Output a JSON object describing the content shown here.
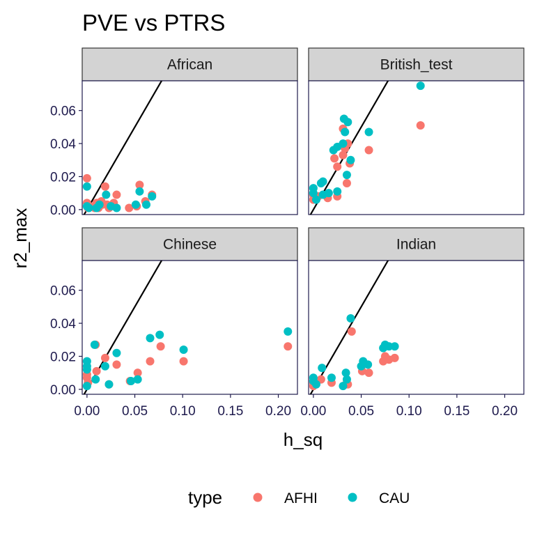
{
  "chart_data": {
    "type": "scatter",
    "title": "PVE vs PTRS",
    "xlabel": "h_sq",
    "ylabel": "r2_max",
    "xlim": [
      -0.005,
      0.22
    ],
    "ylim": [
      -0.003,
      0.078
    ],
    "x_ticks": [
      "0.00",
      "0.05",
      "0.10",
      "0.15",
      "0.20"
    ],
    "y_ticks": [
      "0.00",
      "0.02",
      "0.04",
      "0.06"
    ],
    "reference_line": {
      "slope": 1,
      "intercept": 0
    },
    "grid": false,
    "legend": {
      "title": "type",
      "position": "bottom"
    },
    "series": [
      {
        "name": "AFHI",
        "color": "#F8766D"
      },
      {
        "name": "CAU",
        "color": "#00BFC4"
      }
    ],
    "panels": [
      {
        "label": "African",
        "AFHI": [
          [
            0.0,
            0.019
          ],
          [
            0.0,
            0.004
          ],
          [
            0.001,
            0.001
          ],
          [
            0.003,
            0.002
          ],
          [
            0.008,
            0.001
          ],
          [
            0.01,
            0.004
          ],
          [
            0.012,
            0.001
          ],
          [
            0.015,
            0.005
          ],
          [
            0.019,
            0.014
          ],
          [
            0.021,
            0.003
          ],
          [
            0.023,
            0.001
          ],
          [
            0.028,
            0.004
          ],
          [
            0.031,
            0.009
          ],
          [
            0.044,
            0.001
          ],
          [
            0.052,
            0.002
          ],
          [
            0.055,
            0.015
          ],
          [
            0.061,
            0.005
          ],
          [
            0.068,
            0.009
          ],
          [
            0.016,
            0.003
          ]
        ],
        "CAU": [
          [
            0.0,
            0.014
          ],
          [
            0.0,
            0.002
          ],
          [
            0.002,
            0.001
          ],
          [
            0.01,
            0.001
          ],
          [
            0.013,
            0.003
          ],
          [
            0.02,
            0.009
          ],
          [
            0.025,
            0.002
          ],
          [
            0.031,
            0.001
          ],
          [
            0.051,
            0.003
          ],
          [
            0.055,
            0.011
          ],
          [
            0.062,
            0.003
          ],
          [
            0.068,
            0.008
          ]
        ]
      },
      {
        "label": "British_test",
        "AFHI": [
          [
            0.0,
            0.006
          ],
          [
            0.0,
            0.009
          ],
          [
            0.005,
            0.008
          ],
          [
            0.015,
            0.007
          ],
          [
            0.022,
            0.031
          ],
          [
            0.025,
            0.026
          ],
          [
            0.025,
            0.008
          ],
          [
            0.031,
            0.049
          ],
          [
            0.031,
            0.033
          ],
          [
            0.033,
            0.037
          ],
          [
            0.035,
            0.016
          ],
          [
            0.036,
            0.04
          ],
          [
            0.038,
            0.028
          ],
          [
            0.058,
            0.036
          ],
          [
            0.112,
            0.051
          ]
        ],
        "CAU": [
          [
            0.0,
            0.013
          ],
          [
            0.0,
            0.01
          ],
          [
            0.003,
            0.006
          ],
          [
            0.008,
            0.016
          ],
          [
            0.01,
            0.017
          ],
          [
            0.01,
            0.009
          ],
          [
            0.016,
            0.01
          ],
          [
            0.021,
            0.036
          ],
          [
            0.025,
            0.038
          ],
          [
            0.025,
            0.011
          ],
          [
            0.031,
            0.04
          ],
          [
            0.032,
            0.055
          ],
          [
            0.033,
            0.047
          ],
          [
            0.035,
            0.021
          ],
          [
            0.036,
            0.053
          ],
          [
            0.039,
            0.03
          ],
          [
            0.058,
            0.047
          ],
          [
            0.112,
            0.075
          ]
        ]
      },
      {
        "label": "Chinese",
        "AFHI": [
          [
            0.0,
            0.009
          ],
          [
            0.0,
            0.007
          ],
          [
            0.001,
            0.004
          ],
          [
            0.009,
            0.027
          ],
          [
            0.01,
            0.011
          ],
          [
            0.019,
            0.019
          ],
          [
            0.023,
            0.003
          ],
          [
            0.031,
            0.015
          ],
          [
            0.045,
            0.005
          ],
          [
            0.053,
            0.01
          ],
          [
            0.066,
            0.017
          ],
          [
            0.077,
            0.026
          ],
          [
            0.101,
            0.017
          ],
          [
            0.21,
            0.026
          ]
        ],
        "CAU": [
          [
            0.0,
            0.017
          ],
          [
            0.0,
            0.014
          ],
          [
            0.0,
            0.012
          ],
          [
            0.0,
            0.002
          ],
          [
            0.008,
            0.027
          ],
          [
            0.009,
            0.006
          ],
          [
            0.019,
            0.014
          ],
          [
            0.023,
            0.003
          ],
          [
            0.031,
            0.022
          ],
          [
            0.046,
            0.005
          ],
          [
            0.053,
            0.006
          ],
          [
            0.066,
            0.031
          ],
          [
            0.076,
            0.033
          ],
          [
            0.101,
            0.024
          ],
          [
            0.21,
            0.035
          ]
        ]
      },
      {
        "label": "Indian",
        "AFHI": [
          [
            0.0,
            0.004
          ],
          [
            0.0,
            0.002
          ],
          [
            0.008,
            0.006
          ],
          [
            0.019,
            0.004
          ],
          [
            0.034,
            0.003
          ],
          [
            0.036,
            0.003
          ],
          [
            0.04,
            0.035
          ],
          [
            0.051,
            0.011
          ],
          [
            0.058,
            0.01
          ],
          [
            0.073,
            0.017
          ],
          [
            0.075,
            0.02
          ],
          [
            0.079,
            0.018
          ],
          [
            0.085,
            0.019
          ]
        ],
        "CAU": [
          [
            0.0,
            0.007
          ],
          [
            0.0,
            0.005
          ],
          [
            0.003,
            0.003
          ],
          [
            0.009,
            0.013
          ],
          [
            0.019,
            0.007
          ],
          [
            0.031,
            0.002
          ],
          [
            0.034,
            0.01
          ],
          [
            0.035,
            0.006
          ],
          [
            0.039,
            0.043
          ],
          [
            0.05,
            0.014
          ],
          [
            0.052,
            0.017
          ],
          [
            0.057,
            0.015
          ],
          [
            0.073,
            0.025
          ],
          [
            0.075,
            0.027
          ],
          [
            0.079,
            0.026
          ],
          [
            0.085,
            0.026
          ]
        ]
      }
    ]
  }
}
